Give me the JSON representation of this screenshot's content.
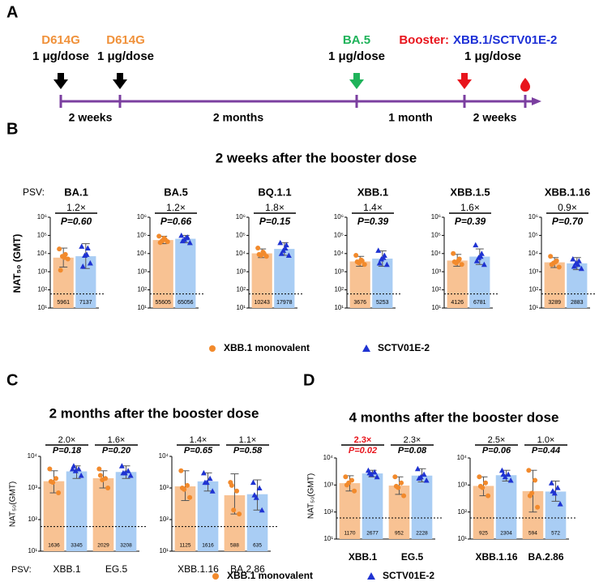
{
  "timeline": {
    "label": "A",
    "events": [
      {
        "lines": [
          [
            {
              "text": "D614G",
              "color": "#f0913a"
            }
          ],
          [
            {
              "text": "1 μg/dose",
              "color": "#000000"
            }
          ]
        ],
        "arrow_color": "#000000"
      },
      {
        "lines": [
          [
            {
              "text": "D614G",
              "color": "#f0913a"
            }
          ],
          [
            {
              "text": "1 μg/dose",
              "color": "#000000"
            }
          ]
        ],
        "arrow_color": "#000000"
      },
      {
        "lines": [
          [
            {
              "text": "BA.5",
              "color": "#1fb35a"
            }
          ],
          [
            {
              "text": "1 μg/dose",
              "color": "#000000"
            }
          ]
        ],
        "arrow_color": "#1fb35a"
      },
      {
        "lines": [
          [
            {
              "text": "Booster:",
              "color": "#e8141c"
            },
            {
              "text": "XBB.1/SCTV01E-2",
              "color": "#1c2fd6"
            }
          ],
          [
            {
              "text": "1 μg/dose",
              "color": "#000000"
            }
          ]
        ],
        "arrow_color": "#e8141c"
      }
    ],
    "intervals": [
      "2 weeks",
      "2 months",
      "1 month",
      "2 weeks"
    ],
    "line_color": "#7b3fa0",
    "end_color": "#e8141c"
  },
  "legend": [
    {
      "name": "XBB.1 monovalent",
      "color": "#f8c293",
      "marker_color": "#f28a2c",
      "marker": "circle"
    },
    {
      "name": "SCTV01E-2",
      "color": "#a9cdf4",
      "marker_color": "#1f33d2",
      "marker": "triangle"
    }
  ],
  "panels": [
    {
      "label": "B",
      "title": "2 weeks after the booster dose",
      "y_label": "NAT₅₀ (GMT)",
      "prefix": "PSV:"
    },
    {
      "label": "C",
      "title": "2 months after the booster dose",
      "y_label": "NAT₅₀(GMT)",
      "prefix": "PSV:"
    },
    {
      "label": "D",
      "title": "4 months after the booster dose",
      "y_label": "NAT₅₀(GMT)"
    }
  ],
  "chart_data": [
    {
      "type": "bar",
      "log_scale": true,
      "category_position": "top",
      "categories": [
        "BA.1"
      ],
      "annotations": {
        "folds": [
          "1.2×"
        ],
        "p_values": [
          "P=0.60"
        ],
        "colors": [
          "#000000"
        ]
      },
      "series": [
        {
          "values": [
            5961
          ],
          "points": [
            [
              18000,
              9000,
              7000,
              5000,
              1200,
              6000
            ]
          ],
          "errors": [
            [
              1800,
              20000
            ]
          ]
        },
        {
          "values": [
            7137
          ],
          "points": [
            [
              25000,
              20000,
              8000,
              3000,
              2000,
              9000
            ]
          ],
          "errors": [
            [
              1500,
              35000
            ]
          ]
        }
      ],
      "ylim": [
        10,
        1000000
      ],
      "threshold": 60,
      "yticks": [
        {
          "value": 10,
          "label": "10¹"
        },
        {
          "value": 100,
          "label": "10²"
        },
        {
          "value": 1000,
          "label": "10³"
        },
        {
          "value": 10000,
          "label": "10⁴"
        },
        {
          "value": 100000,
          "label": "10⁵"
        },
        {
          "value": 1000000,
          "label": "10⁶"
        }
      ]
    },
    {
      "type": "bar",
      "log_scale": true,
      "category_position": "top",
      "categories": [
        "BA.5"
      ],
      "annotations": {
        "folds": [
          "1.2×"
        ],
        "p_values": [
          "P=0.66"
        ],
        "colors": [
          "#000000"
        ]
      },
      "series": [
        {
          "values": [
            55605
          ],
          "points": [
            [
              90000,
              60000,
              50000,
              45000,
              40000,
              70000
            ]
          ],
          "errors": [
            [
              35000,
              90000
            ]
          ]
        },
        {
          "values": [
            65056
          ],
          "points": [
            [
              100000,
              80000,
              60000,
              40000,
              50000,
              75000
            ]
          ],
          "errors": [
            [
              40000,
              100000
            ]
          ]
        }
      ],
      "ylim": [
        10,
        1000000
      ],
      "threshold": 60,
      "yticks": [
        {
          "value": 10,
          "label": "10¹"
        },
        {
          "value": 100,
          "label": "10²"
        },
        {
          "value": 1000,
          "label": "10³"
        },
        {
          "value": 10000,
          "label": "10⁴"
        },
        {
          "value": 100000,
          "label": "10⁵"
        },
        {
          "value": 1000000,
          "label": "10⁶"
        }
      ]
    },
    {
      "type": "bar",
      "log_scale": true,
      "category_position": "top",
      "categories": [
        "BQ.1.1"
      ],
      "annotations": {
        "folds": [
          "1.8×"
        ],
        "p_values": [
          "P=0.15"
        ],
        "colors": [
          "#000000"
        ]
      },
      "series": [
        {
          "values": [
            10243
          ],
          "points": [
            [
              20000,
              10000,
              8000,
              7000,
              9000,
              12000
            ]
          ],
          "errors": [
            [
              6000,
              18000
            ]
          ]
        },
        {
          "values": [
            17978
          ],
          "points": [
            [
              40000,
              30000,
              15000,
              8000,
              10000,
              20000
            ]
          ],
          "errors": [
            [
              8000,
              40000
            ]
          ]
        }
      ],
      "ylim": [
        10,
        1000000
      ],
      "threshold": 60,
      "yticks": [
        {
          "value": 10,
          "label": "10¹"
        },
        {
          "value": 100,
          "label": "10²"
        },
        {
          "value": 1000,
          "label": "10³"
        },
        {
          "value": 10000,
          "label": "10⁴"
        },
        {
          "value": 100000,
          "label": "10⁵"
        },
        {
          "value": 1000000,
          "label": "10⁶"
        }
      ]
    },
    {
      "type": "bar",
      "log_scale": true,
      "category_position": "top",
      "categories": [
        "XBB.1"
      ],
      "annotations": {
        "folds": [
          "1.4×"
        ],
        "p_values": [
          "P=0.39"
        ],
        "colors": [
          "#000000"
        ]
      },
      "series": [
        {
          "values": [
            3676
          ],
          "points": [
            [
              8000,
              4000,
              3000,
              2500,
              3500,
              4500
            ]
          ],
          "errors": [
            [
              2000,
              7000
            ]
          ]
        },
        {
          "values": [
            5253
          ],
          "points": [
            [
              15000,
              8000,
              5000,
              2500,
              3000,
              6000
            ]
          ],
          "errors": [
            [
              2000,
              14000
            ]
          ]
        }
      ],
      "ylim": [
        10,
        1000000
      ],
      "threshold": 60,
      "yticks": [
        {
          "value": 10,
          "label": "10¹"
        },
        {
          "value": 100,
          "label": "10²"
        },
        {
          "value": 1000,
          "label": "10³"
        },
        {
          "value": 10000,
          "label": "10⁴"
        },
        {
          "value": 100000,
          "label": "10⁵"
        },
        {
          "value": 1000000,
          "label": "10⁶"
        }
      ]
    },
    {
      "type": "bar",
      "log_scale": true,
      "category_position": "top",
      "categories": [
        "XBB.1.5"
      ],
      "annotations": {
        "folds": [
          "1.6×"
        ],
        "p_values": [
          "P=0.39"
        ],
        "colors": [
          "#000000"
        ]
      },
      "series": [
        {
          "values": [
            4126
          ],
          "points": [
            [
              10000,
              5000,
              3000,
              2500,
              3500,
              4000
            ]
          ],
          "errors": [
            [
              2000,
              9000
            ]
          ]
        },
        {
          "values": [
            6781
          ],
          "points": [
            [
              30000,
              10000,
              6000,
              2500,
              4000,
              7000
            ]
          ],
          "errors": [
            [
              2500,
              18000
            ]
          ]
        }
      ],
      "ylim": [
        10,
        1000000
      ],
      "threshold": 60,
      "yticks": [
        {
          "value": 10,
          "label": "10¹"
        },
        {
          "value": 100,
          "label": "10²"
        },
        {
          "value": 1000,
          "label": "10³"
        },
        {
          "value": 10000,
          "label": "10⁴"
        },
        {
          "value": 100000,
          "label": "10⁵"
        },
        {
          "value": 1000000,
          "label": "10⁶"
        }
      ]
    },
    {
      "type": "bar",
      "log_scale": true,
      "category_position": "top",
      "categories": [
        "XBB.1.16"
      ],
      "annotations": {
        "folds": [
          "0.9×"
        ],
        "p_values": [
          "P=0.70"
        ],
        "colors": [
          "#000000"
        ]
      },
      "series": [
        {
          "values": [
            3289
          ],
          "points": [
            [
              7000,
              4000,
              3000,
              1800,
              2500,
              3500
            ]
          ],
          "errors": [
            [
              1700,
              6000
            ]
          ]
        },
        {
          "values": [
            2883
          ],
          "points": [
            [
              5000,
              4000,
              3000,
              1500,
              2000,
              2500
            ]
          ],
          "errors": [
            [
              1300,
              6000
            ]
          ]
        }
      ],
      "ylim": [
        10,
        1000000
      ],
      "threshold": 60,
      "yticks": [
        {
          "value": 10,
          "label": "10¹"
        },
        {
          "value": 100,
          "label": "10²"
        },
        {
          "value": 1000,
          "label": "10³"
        },
        {
          "value": 10000,
          "label": "10⁴"
        },
        {
          "value": 100000,
          "label": "10⁵"
        },
        {
          "value": 1000000,
          "label": "10⁶"
        }
      ]
    },
    {
      "type": "bar",
      "log_scale": true,
      "category_position": "bottom",
      "categories": [
        "XBB.1",
        "EG.5"
      ],
      "annotations": {
        "folds": [
          "2.0×",
          "1.6×"
        ],
        "p_values": [
          "P=0.18",
          "P=0.20"
        ],
        "colors": [
          "#000000",
          "#000000"
        ]
      },
      "series": [
        {
          "values": [
            1636,
            2029
          ],
          "points": [
            [
              4000,
              2000,
              1500,
              700,
              1600
            ],
            [
              4000,
              2000,
              1800,
              1000,
              2500
            ]
          ],
          "errors": [
            [
              700,
              3500
            ],
            [
              1000,
              3500
            ]
          ]
        },
        {
          "values": [
            3345,
            3208
          ],
          "points": [
            [
              4000,
              4000,
              3500,
              2500,
              5000
            ],
            [
              5000,
              3500,
              3000,
              2500,
              3000
            ]
          ],
          "errors": [
            [
              2000,
              5000
            ],
            [
              2000,
              5000
            ]
          ]
        }
      ],
      "ylim": [
        10,
        10000
      ],
      "threshold": 60,
      "yticks": [
        {
          "value": 10,
          "label": "10¹"
        },
        {
          "value": 100,
          "label": "10²"
        },
        {
          "value": 1000,
          "label": "10³"
        },
        {
          "value": 10000,
          "label": "10⁴"
        }
      ]
    },
    {
      "type": "bar",
      "log_scale": true,
      "category_position": "bottom",
      "categories": [
        "XBB.1.16",
        "BA.2.86"
      ],
      "annotations": {
        "folds": [
          "1.4×",
          "1.1×"
        ],
        "p_values": [
          "P=0.65",
          "P=0.58"
        ],
        "colors": [
          "#000000",
          "#000000"
        ]
      },
      "series": [
        {
          "values": [
            1125,
            588
          ],
          "points": [
            [
              3500,
              1200,
              900,
              500,
              1000
            ],
            [
              1500,
              800,
              200,
              150,
              1200
            ]
          ],
          "errors": [
            [
              400,
              3500
            ],
            [
              150,
              2800
            ]
          ]
        },
        {
          "values": [
            1616,
            635
          ],
          "points": [
            [
              3000,
              2000,
              1500,
              800,
              1500
            ],
            [
              1500,
              1000,
              500,
              200,
              600
            ]
          ],
          "errors": [
            [
              800,
              3000
            ],
            [
              200,
              1800
            ]
          ]
        }
      ],
      "ylim": [
        10,
        10000
      ],
      "threshold": 60,
      "yticks": [
        {
          "value": 10,
          "label": "10¹"
        },
        {
          "value": 100,
          "label": "10²"
        },
        {
          "value": 1000,
          "label": "10³"
        },
        {
          "value": 10000,
          "label": "10⁴"
        }
      ]
    },
    {
      "type": "bar",
      "log_scale": true,
      "category_position": "bottom",
      "categories": [
        "XBB.1",
        "EG.5"
      ],
      "annotations": {
        "folds": [
          "2.3×",
          "2.3×"
        ],
        "p_values": [
          "P=0.02",
          "P=0.08"
        ],
        "colors": [
          "#e8141c",
          "#000000"
        ]
      },
      "series": [
        {
          "values": [
            1170,
            952
          ],
          "points": [
            [
              2000,
              1500,
              1200,
              600,
              1000
            ],
            [
              2000,
              1200,
              800,
              400,
              900
            ]
          ],
          "errors": [
            [
              600,
              2200
            ],
            [
              450,
              2000
            ]
          ]
        },
        {
          "values": [
            2677,
            2228
          ],
          "points": [
            [
              3500,
              3000,
              2500,
              2000,
              2800
            ],
            [
              4000,
              2500,
              2000,
              1500,
              1800
            ]
          ],
          "errors": [
            [
              2000,
              3500
            ],
            [
              1300,
              4000
            ]
          ]
        }
      ],
      "ylim": [
        10,
        10000
      ],
      "threshold": 60,
      "yticks": [
        {
          "value": 10,
          "label": "10¹"
        },
        {
          "value": 100,
          "label": "10²"
        },
        {
          "value": 1000,
          "label": "10³"
        },
        {
          "value": 10000,
          "label": "10⁴"
        }
      ]
    },
    {
      "type": "bar",
      "log_scale": true,
      "category_position": "bottom",
      "categories": [
        "XBB.1.16",
        "BA.2.86"
      ],
      "annotations": {
        "folds": [
          "2.5×",
          "1.0×"
        ],
        "p_values": [
          "P=0.06",
          "P=0.44"
        ],
        "colors": [
          "#000000",
          "#000000"
        ]
      },
      "series": [
        {
          "values": [
            925,
            594
          ],
          "points": [
            [
              2000,
              1200,
              800,
              400,
              900
            ],
            [
              3500,
              1500,
              500,
              150,
              400
            ]
          ],
          "errors": [
            [
              400,
              2000
            ],
            [
              100,
              3500
            ]
          ]
        },
        {
          "values": [
            2304,
            572
          ],
          "points": [
            [
              3500,
              2500,
              2000,
              1500,
              2500
            ],
            [
              1200,
              800,
              500,
              200,
              600
            ]
          ],
          "errors": [
            [
              1400,
              3500
            ],
            [
              250,
              1400
            ]
          ]
        }
      ],
      "ylim": [
        10,
        10000
      ],
      "threshold": 60,
      "yticks": [
        {
          "value": 10,
          "label": "10¹"
        },
        {
          "value": 100,
          "label": "10²"
        },
        {
          "value": 1000,
          "label": "10³"
        },
        {
          "value": 10000,
          "label": "10⁴"
        }
      ]
    }
  ]
}
